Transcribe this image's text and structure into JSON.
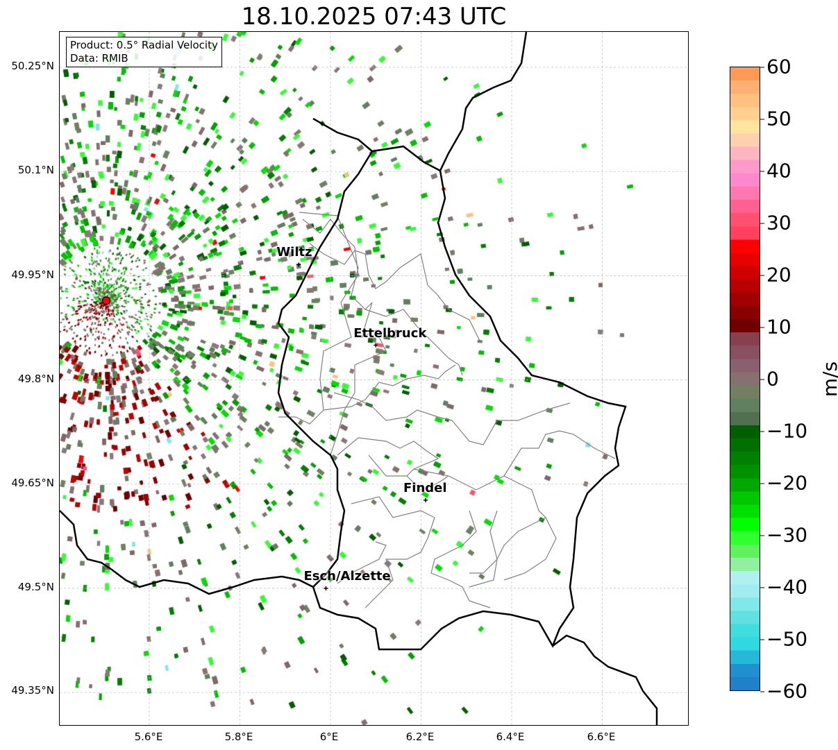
{
  "title": "18.10.2025 07:43 UTC",
  "info": {
    "product": "Product: 0.5° Radial Velocity",
    "data": "Data: RMIB"
  },
  "radar_site": {
    "lon": 5.505,
    "lat": 49.914,
    "color": "#ff0000"
  },
  "cities": [
    {
      "name": "Wiltz",
      "lon": 5.93,
      "lat": 49.966
    },
    {
      "name": "Ettelbruck",
      "lon": 6.1,
      "lat": 49.85
    },
    {
      "name": "Findel",
      "lon": 6.21,
      "lat": 49.627
    },
    {
      "name": "Esch/Alzette",
      "lon": 5.99,
      "lat": 49.5
    }
  ],
  "lat_ticks": [
    "50.25°N",
    "50.1°N",
    "49.95°N",
    "49.8°N",
    "49.65°N",
    "49.5°N",
    "49.35°N"
  ],
  "lon_ticks": [
    "5.6°E",
    "5.8°E",
    "6°E",
    "6.2°E",
    "6.4°E",
    "6.6°E"
  ],
  "colorbar": {
    "label": "m/s",
    "min": -60,
    "max": 60,
    "ticks": [
      "60",
      "50",
      "40",
      "30",
      "20",
      "10",
      "0",
      "−10",
      "−20",
      "−30",
      "−40",
      "−50",
      "−60"
    ],
    "colors_top_to_bottom": [
      "#ff9a55",
      "#ffb070",
      "#ffc080",
      "#ffd090",
      "#ffe4a0",
      "#ffd0b0",
      "#ffb5c0",
      "#ff99cc",
      "#ff88cc",
      "#ff77b0",
      "#ff6090",
      "#ff5070",
      "#ff4060",
      "#ff0000",
      "#e80000",
      "#d00000",
      "#b80000",
      "#a00000",
      "#880000",
      "#700000",
      "#884050",
      "#885060",
      "#886070",
      "#887070",
      "#708060",
      "#608060",
      "#507050",
      "#006000",
      "#007000",
      "#008000",
      "#009000",
      "#00a800",
      "#00c800",
      "#00e000",
      "#00ff00",
      "#30ff30",
      "#60f060",
      "#90f0a0",
      "#b0f0f0",
      "#a0ecf0",
      "#80e8e8",
      "#60e0e0",
      "#40dde0",
      "#30d8e0",
      "#25b8d8",
      "#2090d0",
      "#2080c8"
    ]
  }
}
